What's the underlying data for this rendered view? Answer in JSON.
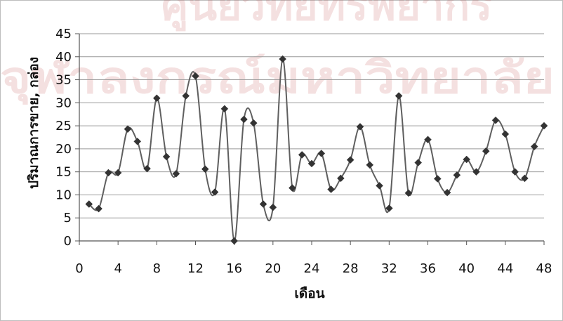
{
  "chart_data": {
    "type": "line",
    "title": "",
    "xlabel": "เดือน",
    "ylabel": "ปริมาณการขาย, กล่อง",
    "xlim": [
      0,
      48
    ],
    "ylim": [
      0,
      45
    ],
    "x_ticks": [
      0,
      4,
      8,
      12,
      16,
      20,
      24,
      28,
      32,
      36,
      40,
      44,
      48
    ],
    "y_ticks": [
      0,
      5,
      10,
      15,
      20,
      25,
      30,
      35,
      40,
      45
    ],
    "grid": "horizontal",
    "legend": "none",
    "marker": "diamond",
    "smooth": true,
    "series": [
      {
        "x": [
          1,
          2,
          3,
          4,
          5,
          6,
          7,
          8,
          9,
          10,
          11,
          12,
          13,
          14,
          15,
          16,
          17,
          18,
          19,
          20,
          21,
          22,
          23,
          24,
          25,
          26,
          27,
          28,
          29,
          30,
          31,
          32,
          33,
          34,
          35,
          36,
          37,
          38,
          39,
          40,
          41,
          42,
          43,
          44,
          45,
          46,
          47,
          48
        ],
        "values": [
          8,
          7,
          14.8,
          14.8,
          24.3,
          21.6,
          15.7,
          31,
          18.3,
          14.6,
          31.5,
          35.8,
          15.6,
          10.6,
          28.7,
          0,
          26.4,
          25.6,
          8,
          7.3,
          39.5,
          11.5,
          18.7,
          16.8,
          19,
          11.2,
          13.6,
          17.6,
          24.8,
          16.5,
          12,
          7.1,
          31.5,
          10.4,
          17,
          22,
          13.5,
          10.5,
          14.3,
          17.7,
          15,
          19.5,
          26.2,
          23.2,
          15,
          13.6,
          20.5,
          25
        ]
      }
    ],
    "colors": {
      "line": "#5f5f5f",
      "marker": "#333333",
      "grid": "#9a9a9a",
      "axis": "#555555",
      "text": "#111111"
    }
  },
  "watermark": {
    "line1": "ศูนย์วิทยทรัพยากร",
    "line2": "จุฬาลงกรณ์มหาวิทยาลัย"
  }
}
